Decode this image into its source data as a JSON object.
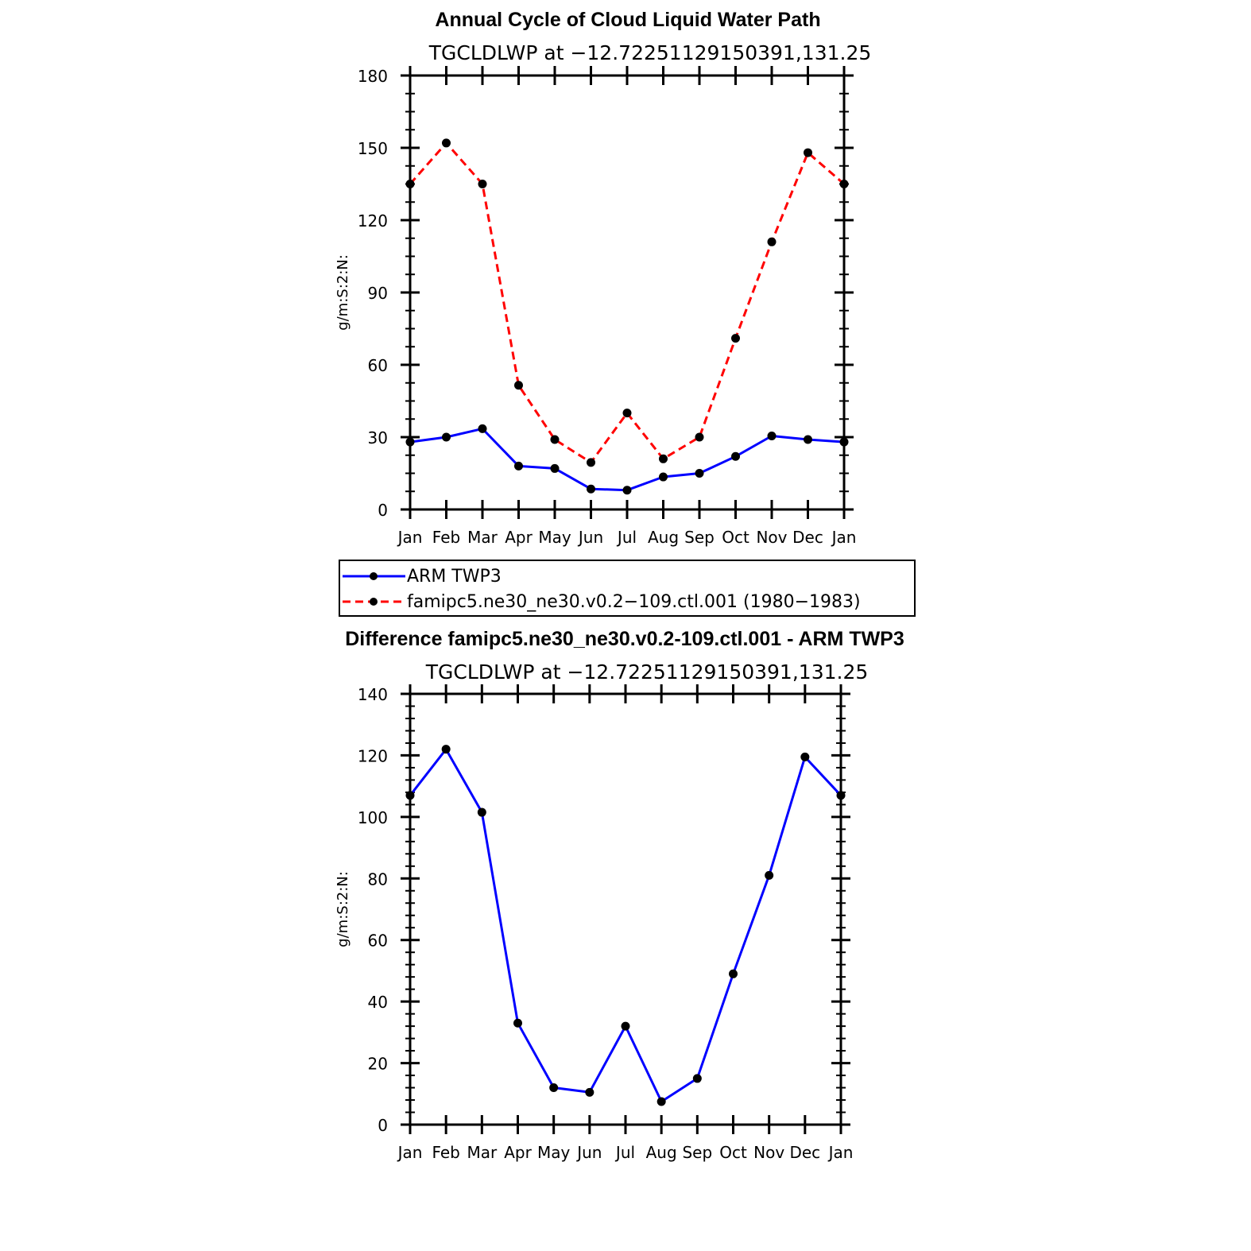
{
  "chart_data": [
    {
      "type": "line",
      "title": "Annual Cycle of Cloud Liquid Water Path",
      "subtitle": "TGCLDLWP  at  −12.72251129150391,131.25",
      "ylabel": "g/m:S:2:N:",
      "categories": [
        "Jan",
        "Feb",
        "Mar",
        "Apr",
        "May",
        "Jun",
        "Jul",
        "Aug",
        "Sep",
        "Oct",
        "Nov",
        "Dec",
        "Jan"
      ],
      "ylim": [
        0,
        180
      ],
      "yticks": [
        0,
        30,
        60,
        90,
        120,
        150,
        180
      ],
      "series": [
        {
          "name": "ARM TWP3",
          "color": "#0000ff",
          "dash": "solid",
          "values": [
            28,
            30,
            33.5,
            18,
            17,
            8.5,
            8,
            13.5,
            15,
            22,
            30.5,
            29,
            28
          ]
        },
        {
          "name": "famipc5.ne30_ne30.v0.2−109.ctl.001 (1980−1983)",
          "color": "#ff0000",
          "dash": "dashed",
          "values": [
            135,
            152,
            135,
            51.5,
            29,
            19.5,
            40,
            21,
            30,
            71,
            111,
            148,
            135
          ]
        }
      ],
      "legend": "bottom"
    },
    {
      "type": "line",
      "title": "Difference famipc5.ne30_ne30.v0.2-109.ctl.001 - ARM TWP3",
      "subtitle": "TGCLDLWP  at  −12.72251129150391,131.25",
      "ylabel": "g/m:S:2:N:",
      "categories": [
        "Jan",
        "Feb",
        "Mar",
        "Apr",
        "May",
        "Jun",
        "Jul",
        "Aug",
        "Sep",
        "Oct",
        "Nov",
        "Dec",
        "Jan"
      ],
      "ylim": [
        0,
        140
      ],
      "yticks": [
        0,
        20,
        40,
        60,
        80,
        100,
        120,
        140
      ],
      "series": [
        {
          "color": "#0000ff",
          "dash": "solid",
          "values": [
            107,
            122,
            101.5,
            33,
            12,
            10.5,
            32,
            7.5,
            15,
            49,
            81,
            119.5,
            107
          ]
        }
      ]
    }
  ]
}
